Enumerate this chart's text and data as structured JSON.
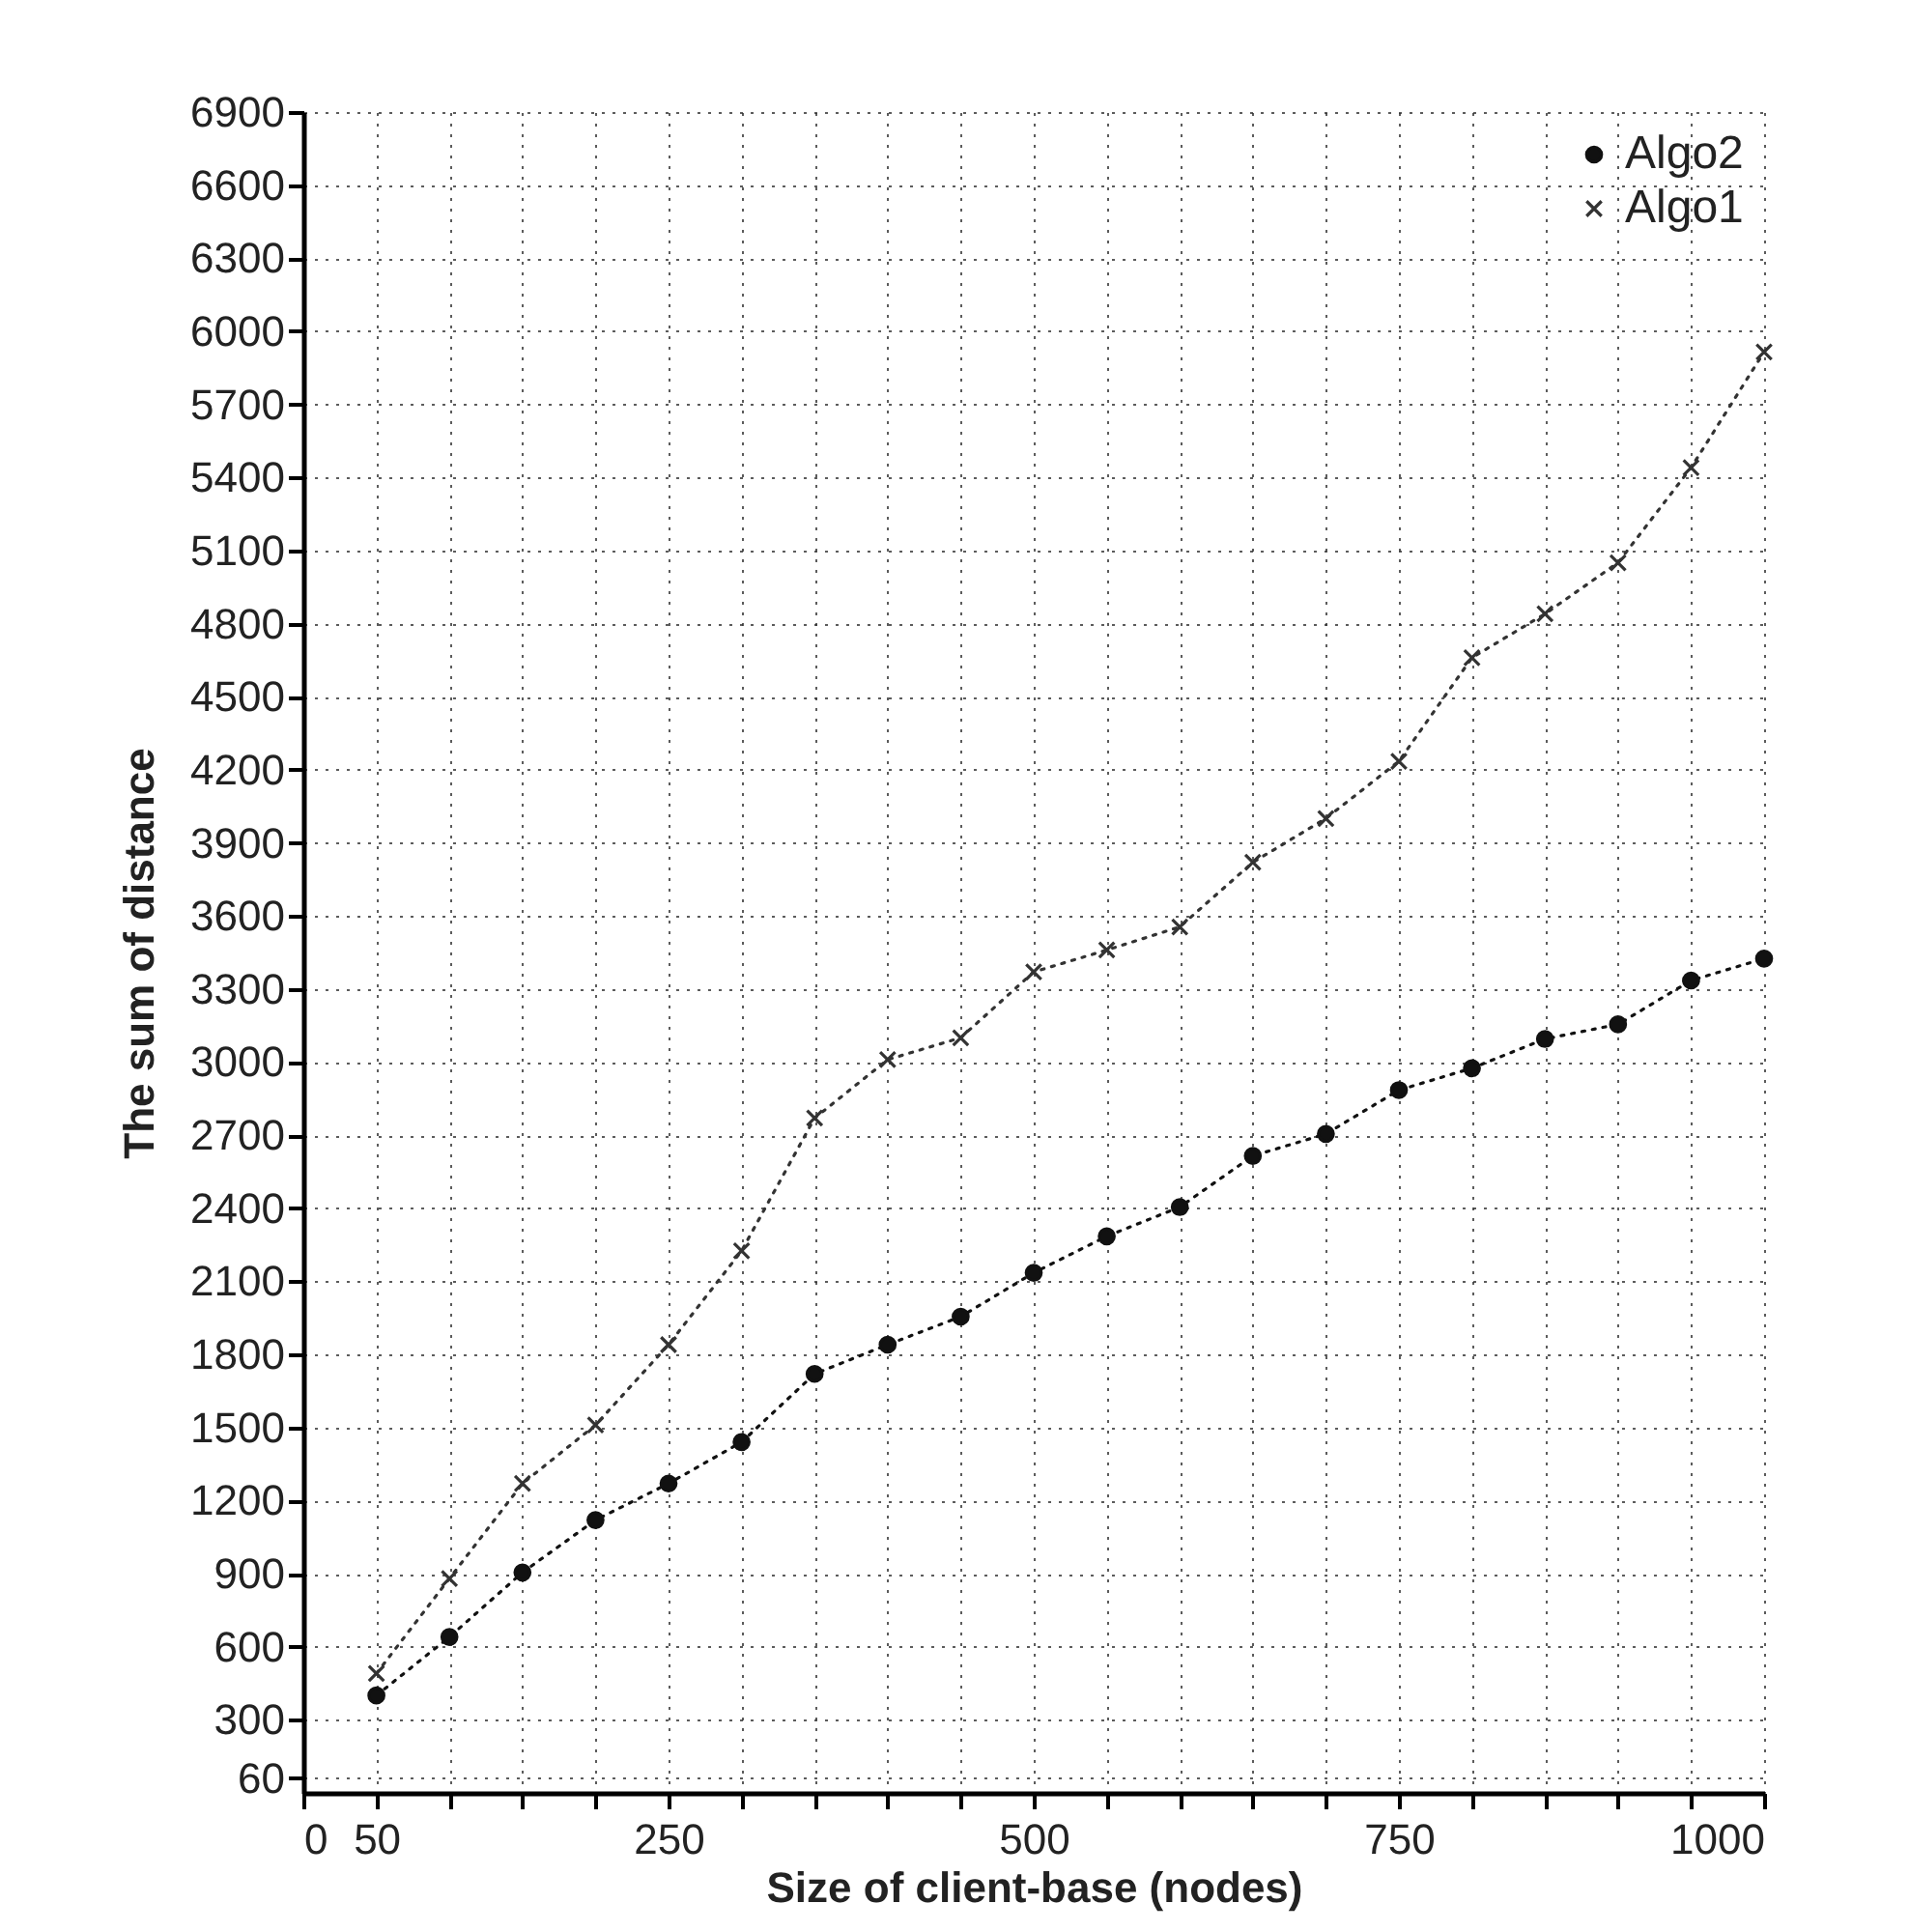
{
  "chart_data": {
    "type": "line",
    "xlabel": "Size of client-base  (nodes)",
    "ylabel": "The sum of distance",
    "x": [
      50,
      100,
      150,
      200,
      250,
      300,
      350,
      400,
      450,
      500,
      550,
      600,
      650,
      700,
      750,
      800,
      850,
      900,
      950,
      1000
    ],
    "series": [
      {
        "name": "Algo2",
        "color": "#111111",
        "marker": "circle",
        "line_style": "dotted",
        "values": [
          400,
          640,
          905,
          1120,
          1270,
          1440,
          1720,
          1840,
          1955,
          2135,
          2285,
          2405,
          2615,
          2705,
          2885,
          2975,
          3095,
          3155,
          3335,
          3425
        ]
      },
      {
        "name": "Algo1",
        "color": "#333333",
        "marker": "cross",
        "line_style": "dotted",
        "values": [
          490,
          880,
          1270,
          1510,
          1840,
          2225,
          2770,
          3010,
          3100,
          3370,
          3460,
          3555,
          3820,
          4000,
          4235,
          4660,
          4840,
          5050,
          5440,
          5915
        ]
      }
    ],
    "xlim": [
      0,
      1000
    ],
    "xticks": [
      0,
      50,
      {
        "value": 100,
        "label": null
      },
      {
        "value": 150,
        "label": null
      },
      {
        "value": 200,
        "label": null
      },
      250,
      {
        "value": 300,
        "label": null
      },
      {
        "value": 350,
        "label": null
      },
      {
        "value": 400,
        "label": null
      },
      {
        "value": 450,
        "label": null
      },
      500,
      {
        "value": 550,
        "label": null
      },
      {
        "value": 600,
        "label": null
      },
      {
        "value": 650,
        "label": null
      },
      {
        "value": 700,
        "label": null
      },
      750,
      {
        "value": 800,
        "label": null
      },
      {
        "value": 850,
        "label": null
      },
      {
        "value": 900,
        "label": null
      },
      {
        "value": 950,
        "label": null
      },
      1000
    ],
    "ylim": [
      0,
      6900
    ],
    "yticks": [
      60,
      300,
      600,
      900,
      1200,
      1500,
      1800,
      2100,
      2400,
      2700,
      3000,
      3300,
      3600,
      3900,
      4200,
      4500,
      4800,
      5100,
      5400,
      5700,
      6000,
      6300,
      6600,
      6900
    ],
    "grid": true,
    "legend": "top right"
  }
}
